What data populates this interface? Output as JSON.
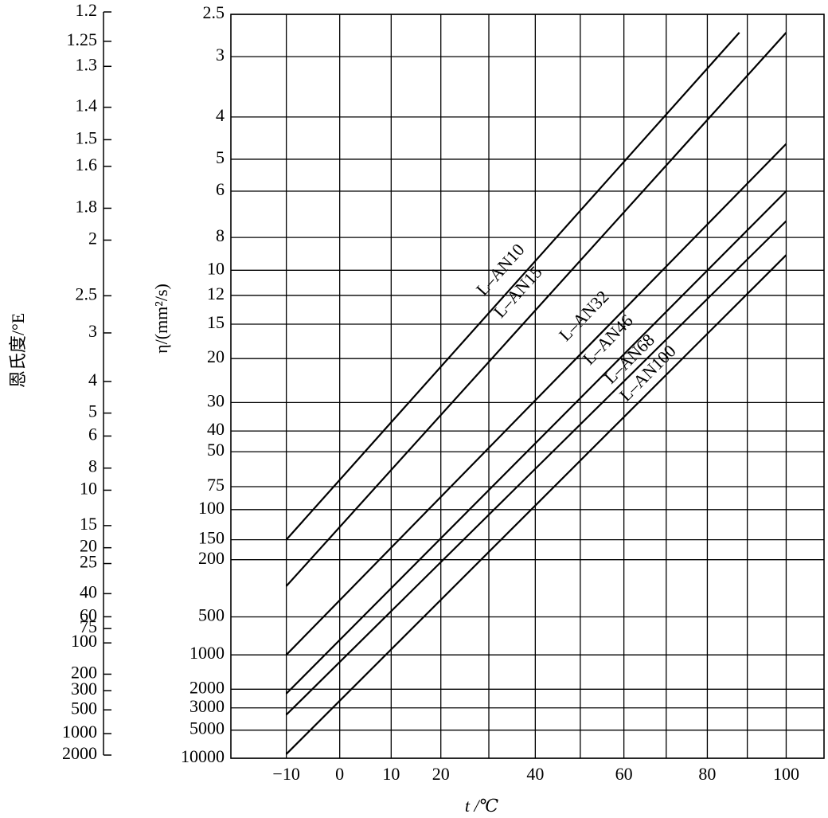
{
  "chart_data": {
    "type": "line",
    "xlabel": "t /℃",
    "ylabel": "η/(mm²/s)",
    "y2label": "恩氏度/°E",
    "xscale": "log-kelvin",
    "yscale": "loglog",
    "y2scale": "loglog",
    "grid": true,
    "xlim": [
      -20,
      110
    ],
    "xticks": [
      {
        "value": -10,
        "label": "−10"
      },
      0,
      10,
      20,
      40,
      60,
      80,
      100
    ],
    "x_minor_grid": [
      30,
      50,
      70,
      90
    ],
    "ylim": [
      2.5,
      10000
    ],
    "yticks": [
      2.5,
      3,
      4,
      5,
      6,
      8,
      10,
      12,
      15,
      20,
      30,
      40,
      50,
      75,
      100,
      150,
      200,
      500,
      1000,
      2000,
      3000,
      5000,
      10000
    ],
    "y2lim": [
      1.2,
      2000
    ],
    "y2ticks": [
      1.2,
      1.25,
      1.3,
      1.4,
      1.5,
      1.6,
      1.8,
      2,
      2.5,
      3,
      4,
      5,
      6,
      8,
      10,
      15,
      20,
      25,
      40,
      60,
      75,
      100,
      200,
      300,
      500,
      1000,
      2000
    ],
    "series": [
      {
        "name": "L–AN10",
        "color": "#000000",
        "x": [
          -10,
          88
        ],
        "values": [
          150,
          2.7
        ]
      },
      {
        "name": "L–AN15",
        "color": "#000000",
        "x": [
          -10,
          100
        ],
        "values": [
          300,
          2.7
        ]
      },
      {
        "name": "L–AN32",
        "color": "#000000",
        "x": [
          -10,
          100
        ],
        "values": [
          1000,
          4.6
        ]
      },
      {
        "name": "L–AN46",
        "color": "#000000",
        "x": [
          -10,
          100
        ],
        "values": [
          2200,
          6
        ]
      },
      {
        "name": "L–AN68",
        "color": "#000000",
        "x": [
          -10,
          100
        ],
        "values": [
          3500,
          7.2
        ]
      },
      {
        "name": "L–AN100",
        "color": "#000000",
        "x": [
          -10,
          100
        ],
        "values": [
          9000,
          9
        ]
      }
    ]
  }
}
